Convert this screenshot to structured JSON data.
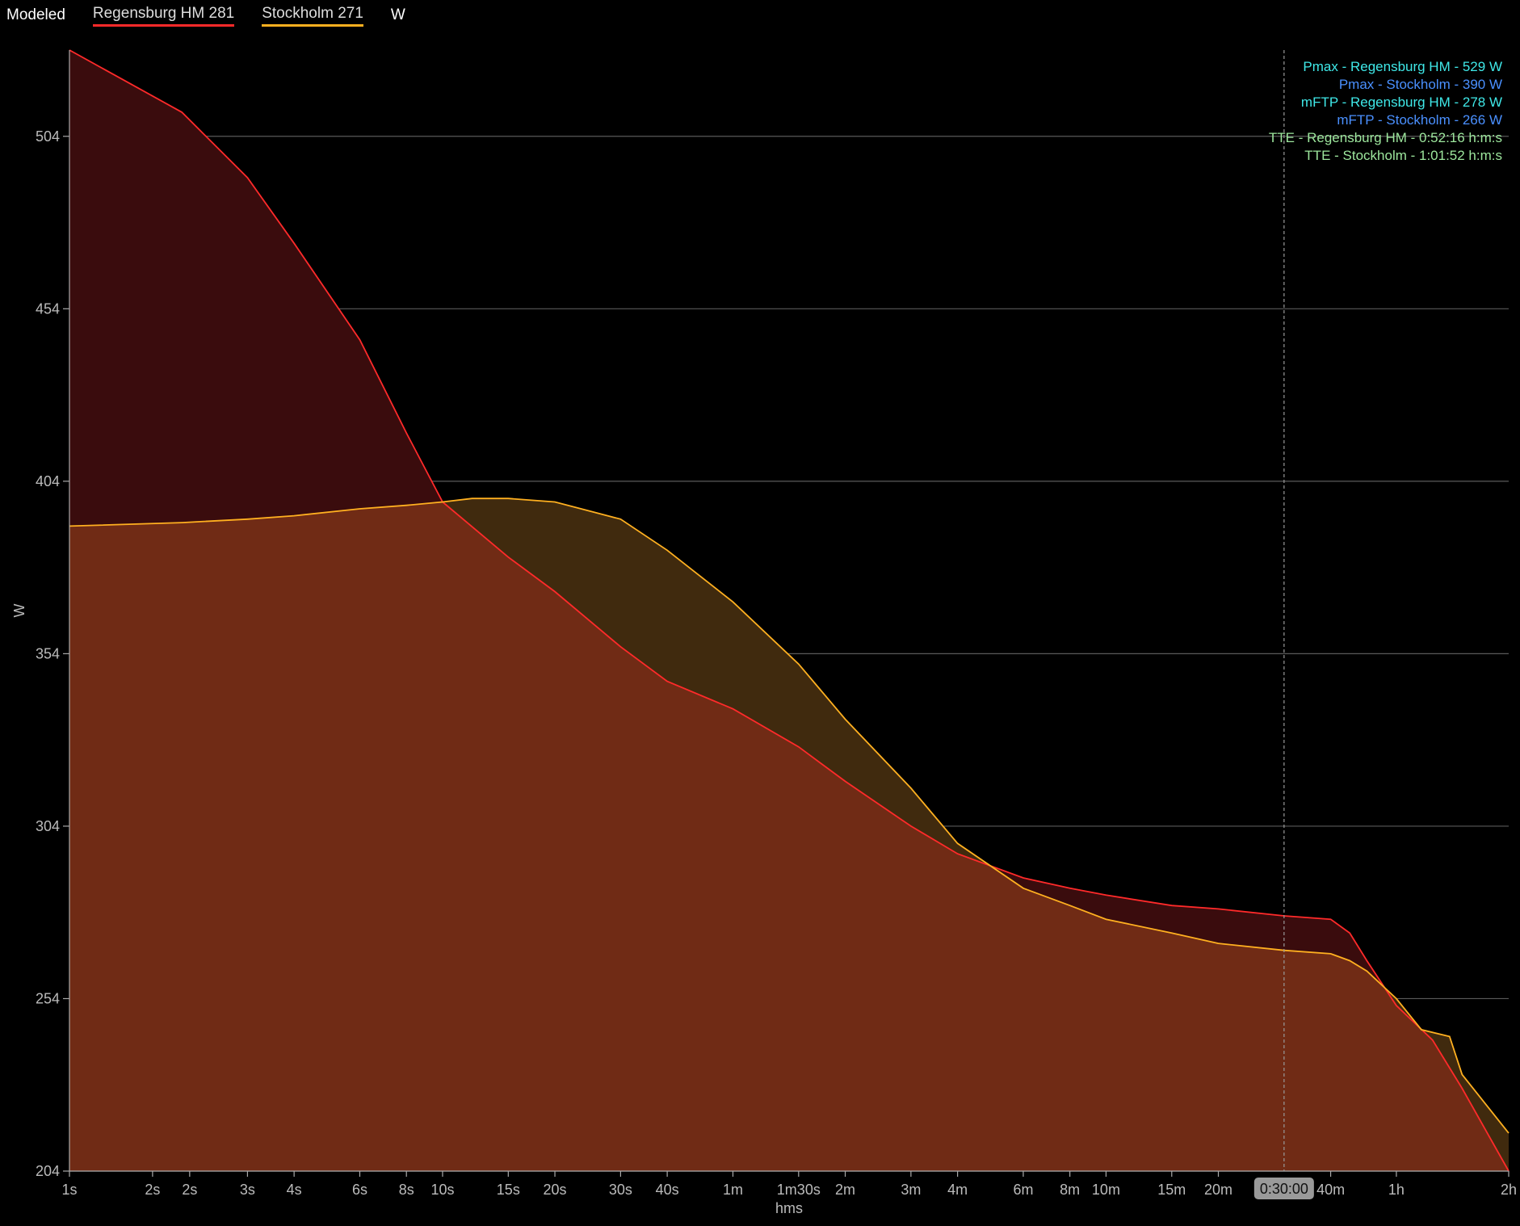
{
  "legend": {
    "title": "Modeled",
    "series_1": "Regensburg HM  281",
    "series_2": "Stockholm  271",
    "unit": "W"
  },
  "info_lines": [
    {
      "text": "Pmax - Regensburg HM - 529 W",
      "color": "#3fe8e8"
    },
    {
      "text": "Pmax - Stockholm - 390 W",
      "color": "#4a90ff"
    },
    {
      "text": "mFTP - Regensburg HM - 278 W",
      "color": "#3fe8e8"
    },
    {
      "text": "mFTP - Stockholm - 266 W",
      "color": "#4a90ff"
    },
    {
      "text": "TTE - Regensburg HM - 0:52:16 h:m:s",
      "color": "#9de79d"
    },
    {
      "text": "TTE - Stockholm - 1:01:52 h:m:s",
      "color": "#9de79d"
    }
  ],
  "crosshair": {
    "label": "0:30:00",
    "seconds": 1800
  },
  "chart_data": {
    "type": "area",
    "xlabel": "hms",
    "ylabel": "W",
    "x_scale": "log",
    "x_range_seconds": [
      1,
      7200
    ],
    "ylim": [
      204,
      529
    ],
    "yticks": [
      204,
      254,
      304,
      354,
      404,
      454,
      504
    ],
    "xticks": [
      {
        "label": "1s",
        "s": 1
      },
      {
        "label": "2s",
        "s": 1.67
      },
      {
        "label": "2s",
        "s": 2.1
      },
      {
        "label": "3s",
        "s": 3
      },
      {
        "label": "4s",
        "s": 4
      },
      {
        "label": "6s",
        "s": 6
      },
      {
        "label": "8s",
        "s": 8
      },
      {
        "label": "10s",
        "s": 10
      },
      {
        "label": "15s",
        "s": 15
      },
      {
        "label": "20s",
        "s": 20
      },
      {
        "label": "30s",
        "s": 30
      },
      {
        "label": "40s",
        "s": 40
      },
      {
        "label": "1m",
        "s": 60
      },
      {
        "label": "1m30s",
        "s": 90
      },
      {
        "label": "2m",
        "s": 120
      },
      {
        "label": "3m",
        "s": 180
      },
      {
        "label": "4m",
        "s": 240
      },
      {
        "label": "6m",
        "s": 360
      },
      {
        "label": "8m",
        "s": 480
      },
      {
        "label": "10m",
        "s": 600
      },
      {
        "label": "15m",
        "s": 900
      },
      {
        "label": "20m",
        "s": 1200
      },
      {
        "label": "40m",
        "s": 2400
      },
      {
        "label": "1h",
        "s": 3600
      },
      {
        "label": "2h",
        "s": 7200
      }
    ],
    "grid": true,
    "legend_position": "top-left",
    "series": [
      {
        "name": "Regensburg HM  281",
        "line_color": "#ff2a2a",
        "fill_color": "#3a0c0d",
        "points": [
          [
            1,
            529
          ],
          [
            2,
            511
          ],
          [
            3,
            492
          ],
          [
            4,
            473
          ],
          [
            6,
            445
          ],
          [
            8,
            418
          ],
          [
            10,
            398
          ],
          [
            15,
            382
          ],
          [
            20,
            372
          ],
          [
            30,
            356
          ],
          [
            40,
            346
          ],
          [
            60,
            338
          ],
          [
            90,
            327
          ],
          [
            120,
            317
          ],
          [
            180,
            304
          ],
          [
            240,
            296
          ],
          [
            360,
            289
          ],
          [
            480,
            286
          ],
          [
            600,
            284
          ],
          [
            900,
            281
          ],
          [
            1200,
            280
          ],
          [
            1800,
            278
          ],
          [
            2400,
            277
          ],
          [
            2700,
            273
          ],
          [
            3000,
            265
          ],
          [
            3600,
            252
          ],
          [
            4500,
            242
          ],
          [
            5400,
            228
          ],
          [
            7200,
            204
          ]
        ]
      },
      {
        "name": "Stockholm  271",
        "line_color": "#ffb020",
        "fill_color": "#402a0e",
        "points": [
          [
            1,
            391
          ],
          [
            2,
            392
          ],
          [
            3,
            393
          ],
          [
            4,
            394
          ],
          [
            6,
            396
          ],
          [
            8,
            397
          ],
          [
            10,
            398
          ],
          [
            12,
            399
          ],
          [
            15,
            399
          ],
          [
            20,
            398
          ],
          [
            30,
            393
          ],
          [
            40,
            384
          ],
          [
            60,
            369
          ],
          [
            90,
            351
          ],
          [
            120,
            335
          ],
          [
            180,
            315
          ],
          [
            240,
            299
          ],
          [
            360,
            286
          ],
          [
            480,
            281
          ],
          [
            600,
            277
          ],
          [
            900,
            273
          ],
          [
            1200,
            270
          ],
          [
            1800,
            268
          ],
          [
            2400,
            267
          ],
          [
            2700,
            265
          ],
          [
            3000,
            262
          ],
          [
            3600,
            254
          ],
          [
            4200,
            245
          ],
          [
            5000,
            243
          ],
          [
            5400,
            232
          ],
          [
            7200,
            215
          ]
        ]
      }
    ]
  }
}
